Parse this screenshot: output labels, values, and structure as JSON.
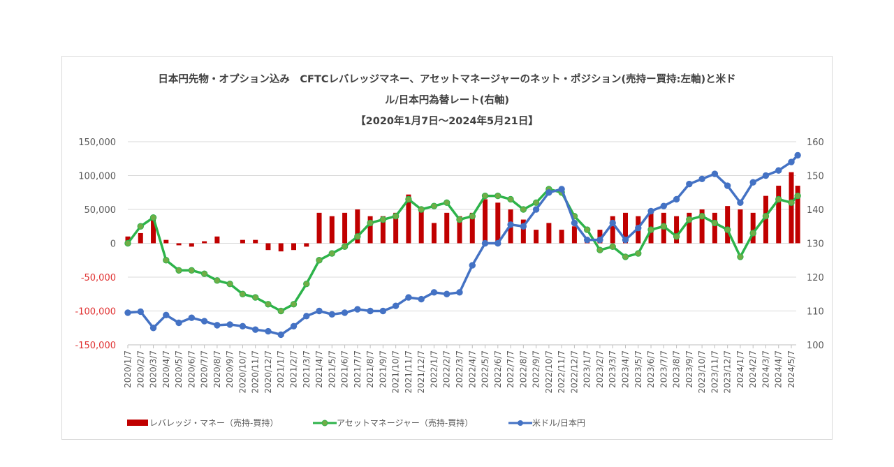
{
  "chart_data": {
    "type": "bar+line",
    "title_lines": [
      "日本円先物・オプション込み CFTCレバレッジマネー、アセットマネージャーのネット・ポジション(売持ー買持:左軸)と米ドル/日本円為替レート(右軸)",
      "【2020年1月7日～2024年5月21日】"
    ],
    "title_line1": "日本円先物・オプション込み　CFTCレバレッジマネー、アセットマネージャーのネット・ポジション(売持ー買持:左軸)と米ド",
    "title_line2": "ル/日本円為替レート(右軸)",
    "title_line3": "【2020年1月7日～2024年5月21日】",
    "left_axis": {
      "ylim": [
        -150000,
        150000
      ],
      "ticks": [
        "150,000",
        "100,000",
        "50,000",
        "0",
        "-50,000",
        "-100,000",
        "-150,000"
      ],
      "negative_color": "#e03030"
    },
    "right_axis": {
      "ylim": [
        100,
        160
      ],
      "ticks": [
        "160",
        "150",
        "140",
        "130",
        "120",
        "110",
        "100"
      ]
    },
    "grid": true,
    "legend_position": "bottom",
    "x_tick_labels": [
      "2020/1/7",
      "2020/2/7",
      "2020/3/7",
      "2020/4/7",
      "2020/5/7",
      "2020/6/7",
      "2020/7/7",
      "2020/8/7",
      "2020/9/7",
      "2020/10/7",
      "2020/11/7",
      "2020/12/7",
      "2021/1/7",
      "2021/2/7",
      "2021/3/7",
      "2021/4/7",
      "2021/5/7",
      "2021/6/7",
      "2021/7/7",
      "2021/8/7",
      "2021/9/7",
      "2021/10/7",
      "2021/11/7",
      "2021/12/7",
      "2022/1/7",
      "2022/2/7",
      "2022/3/7",
      "2022/4/7",
      "2022/5/7",
      "2022/6/7",
      "2022/7/7",
      "2022/8/7",
      "2022/9/7",
      "2022/10/7",
      "2022/11/7",
      "2022/12/7",
      "2023/1/7",
      "2023/2/7",
      "2023/3/7",
      "2023/4/7",
      "2023/5/7",
      "2023/6/7",
      "2023/7/7",
      "2023/8/7",
      "2023/9/7",
      "2023/10/7",
      "2023/11/7",
      "2023/12/7",
      "2024/1/7",
      "2024/2/7",
      "2024/3/7",
      "2024/4/7",
      "2024/5/7"
    ],
    "x": [
      "2020/1/7",
      "2020/2/7",
      "2020/3/7",
      "2020/4/7",
      "2020/5/7",
      "2020/6/7",
      "2020/7/7",
      "2020/8/7",
      "2020/9/7",
      "2020/10/7",
      "2020/11/7",
      "2020/12/7",
      "2021/1/7",
      "2021/2/7",
      "2021/3/7",
      "2021/4/7",
      "2021/5/7",
      "2021/6/7",
      "2021/7/7",
      "2021/8/7",
      "2021/9/7",
      "2021/10/7",
      "2021/11/7",
      "2021/12/7",
      "2022/1/7",
      "2022/2/7",
      "2022/3/7",
      "2022/4/7",
      "2022/5/7",
      "2022/6/7",
      "2022/7/7",
      "2022/8/7",
      "2022/9/7",
      "2022/10/7",
      "2022/11/7",
      "2022/12/7",
      "2023/1/7",
      "2023/2/7",
      "2023/3/7",
      "2023/4/7",
      "2023/5/7",
      "2023/6/7",
      "2023/7/7",
      "2023/8/7",
      "2023/9/7",
      "2023/10/7",
      "2023/11/7",
      "2023/12/7",
      "2024/1/7",
      "2024/2/7",
      "2024/3/7",
      "2024/4/7",
      "2024/5/7",
      "2024/5/21"
    ],
    "series": [
      {
        "name": "レバレッジ・マネー（売持-買持）",
        "type": "bar",
        "axis": "left",
        "color": "#c00000",
        "values": [
          10000,
          15000,
          40000,
          5000,
          -3000,
          -5000,
          3000,
          10000,
          0,
          5000,
          5000,
          -10000,
          -12000,
          -10000,
          -5000,
          45000,
          40000,
          45000,
          50000,
          40000,
          40000,
          45000,
          72000,
          50000,
          30000,
          45000,
          40000,
          45000,
          65000,
          60000,
          50000,
          35000,
          20000,
          30000,
          20000,
          25000,
          5000,
          20000,
          40000,
          45000,
          40000,
          50000,
          45000,
          40000,
          45000,
          50000,
          45000,
          55000,
          50000,
          45000,
          70000,
          85000,
          105000,
          85000
        ]
      },
      {
        "name": "アセットマネージャー（売持-買持）",
        "type": "line",
        "axis": "left",
        "color": "#2db34a",
        "marker_color": "#70ad47",
        "values": [
          0,
          25000,
          38000,
          -25000,
          -40000,
          -40000,
          -45000,
          -55000,
          -60000,
          -75000,
          -80000,
          -90000,
          -100000,
          -90000,
          -60000,
          -25000,
          -15000,
          -5000,
          10000,
          30000,
          35000,
          40000,
          65000,
          50000,
          55000,
          60000,
          35000,
          40000,
          70000,
          70000,
          65000,
          50000,
          60000,
          80000,
          75000,
          40000,
          20000,
          -10000,
          -5000,
          -20000,
          -15000,
          20000,
          25000,
          10000,
          35000,
          40000,
          30000,
          20000,
          -20000,
          15000,
          40000,
          65000,
          60000,
          70000
        ]
      },
      {
        "name": "米ドル/日本円",
        "type": "line",
        "axis": "right",
        "color": "#4472c4",
        "values": [
          109.5,
          109.8,
          105,
          108.8,
          106.5,
          108,
          107,
          105.8,
          106,
          105.5,
          104.5,
          104,
          103,
          105.5,
          108.5,
          110,
          109,
          109.5,
          110.5,
          110,
          110,
          111.5,
          114,
          113.5,
          115.5,
          115,
          115.5,
          123.5,
          130,
          130,
          135.5,
          135,
          140,
          145,
          146,
          136,
          131,
          131,
          136,
          131,
          134.5,
          139.5,
          141,
          143,
          147.5,
          149,
          150.5,
          147,
          142,
          148,
          150,
          151.5,
          154,
          156
        ]
      }
    ]
  }
}
